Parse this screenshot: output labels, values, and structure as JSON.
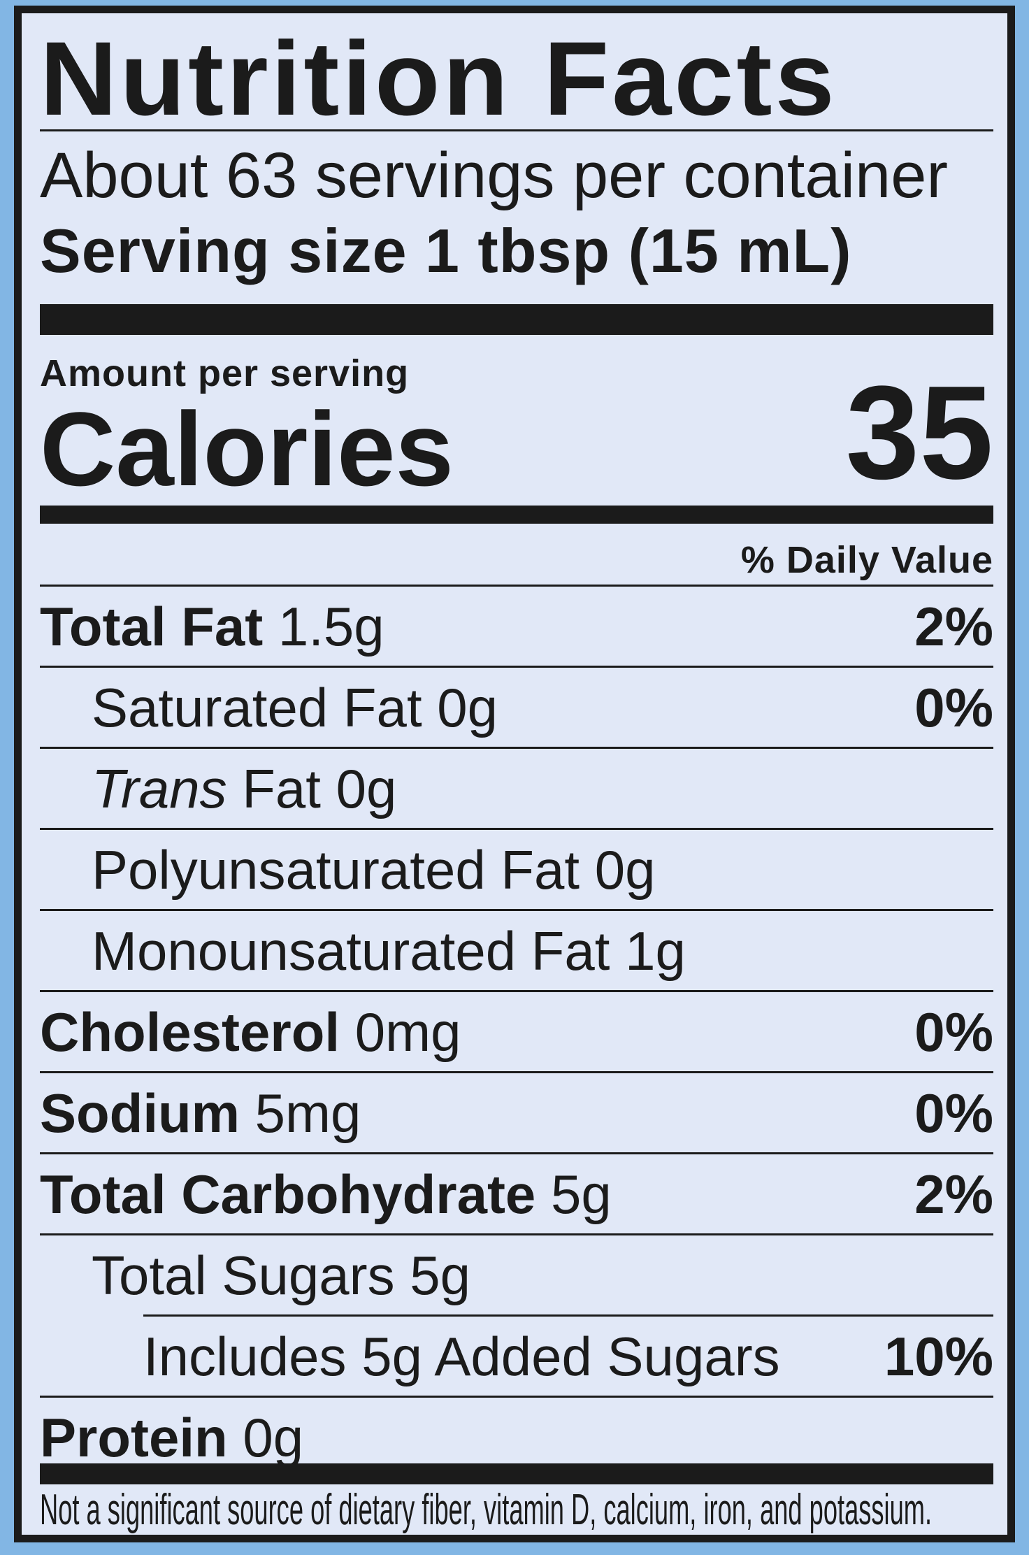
{
  "title": "Nutrition Facts",
  "servings_per_container": "About 63 servings per container",
  "serving_size": "Serving size 1 tbsp (15 mL)",
  "amount_per_serving": "Amount per serving",
  "calories": {
    "label": "Calories",
    "value": "35"
  },
  "daily_value_header": "% Daily Value",
  "rows": [
    {
      "label": "Total Fat",
      "amount": "1.5g",
      "pct": "2%"
    },
    {
      "label": "Saturated Fat",
      "amount": "0g",
      "pct": "0%"
    },
    {
      "label_italic": "Trans",
      "label": "Fat",
      "amount": "0g",
      "pct": ""
    },
    {
      "label": "Polyunsaturated Fat",
      "amount": "0g",
      "pct": ""
    },
    {
      "label": "Monounsaturated Fat",
      "amount": "1g",
      "pct": ""
    },
    {
      "label": "Cholesterol",
      "amount": "0mg",
      "pct": "0%"
    },
    {
      "label": "Sodium",
      "amount": "5mg",
      "pct": "0%"
    },
    {
      "label": "Total Carbohydrate",
      "amount": "5g",
      "pct": "2%"
    },
    {
      "label": "Total Sugars",
      "amount": "5g",
      "pct": ""
    },
    {
      "label": "Includes 5g Added Sugars",
      "amount": "",
      "pct": "10%"
    },
    {
      "label": "Protein",
      "amount": "0g",
      "pct": ""
    }
  ],
  "footnote": "Not a significant source of dietary fiber, vitamin D, calcium, iron, and potassium.",
  "colors": {
    "background": "#82b6e4",
    "panel": "#e1e8f7",
    "ink": "#1b1b1b"
  }
}
